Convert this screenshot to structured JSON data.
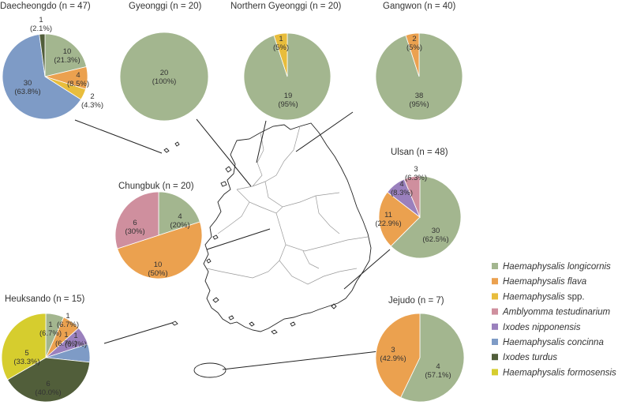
{
  "colors": {
    "Haemaphysalis longicornis": "#a3b68f",
    "Haemaphysalis flava": "#eba14f",
    "Haemaphysalis spp.": "#e8bd3c",
    "Amblyomma testudinarium": "#cf8f9e",
    "Ixodes nipponensis": "#9a80bd",
    "Haemaphysalis concinna": "#7e9bc6",
    "Ixodes turdus": "#515e3a",
    "Haemaphysalis formosensis": "#d6cd2e"
  },
  "legend": [
    {
      "name": "Haemaphysalis longicornis",
      "suffix": ""
    },
    {
      "name": "Haemaphysalis flava",
      "suffix": ""
    },
    {
      "name": "Haemaphysalis",
      "suffix": " spp."
    },
    {
      "name": "Amblyomma testudinarium",
      "suffix": ""
    },
    {
      "name": "Ixodes nipponensis",
      "suffix": ""
    },
    {
      "name": "Haemaphysalis concinna",
      "suffix": ""
    },
    {
      "name": "Ixodes turdus",
      "suffix": ""
    },
    {
      "name": "Haemaphysalis formosensis",
      "suffix": ""
    }
  ],
  "chart_data": [
    {
      "type": "pie",
      "title": "Daecheongdo (n = 47)",
      "slices": [
        {
          "species": "Haemaphysalis longicornis",
          "count": 10,
          "label": "10",
          "percent": "(21.3%)"
        },
        {
          "species": "Haemaphysalis flava",
          "count": 4,
          "label": "4",
          "percent": "(8.5%)"
        },
        {
          "species": "Haemaphysalis spp.",
          "count": 2,
          "label": "2",
          "percent": "(4.3%)"
        },
        {
          "species": "Haemaphysalis concinna",
          "count": 30,
          "label": "30",
          "percent": "(63.8%)"
        },
        {
          "species": "Ixodes turdus",
          "count": 1,
          "label": "1",
          "percent": "(2.1%)"
        }
      ]
    },
    {
      "type": "pie",
      "title": "Gyeonggi (n = 20)",
      "slices": [
        {
          "species": "Haemaphysalis longicornis",
          "count": 20,
          "label": "20",
          "percent": "(100%)"
        }
      ]
    },
    {
      "type": "pie",
      "title": "Northern Gyeonggi (n = 20)",
      "slices": [
        {
          "species": "Haemaphysalis longicornis",
          "count": 19,
          "label": "19",
          "percent": "(95%)"
        },
        {
          "species": "Haemaphysalis spp.",
          "count": 1,
          "label": "1",
          "percent": "(5%)"
        }
      ]
    },
    {
      "type": "pie",
      "title": "Gangwon (n = 40)",
      "slices": [
        {
          "species": "Haemaphysalis longicornis",
          "count": 38,
          "label": "38",
          "percent": "(95%)"
        },
        {
          "species": "Haemaphysalis flava",
          "count": 2,
          "label": "2",
          "percent": "(5%)"
        }
      ]
    },
    {
      "type": "pie",
      "title": "Chungbuk (n = 20)",
      "slices": [
        {
          "species": "Haemaphysalis longicornis",
          "count": 4,
          "label": "4",
          "percent": "(20%)"
        },
        {
          "species": "Haemaphysalis flava",
          "count": 10,
          "label": "10",
          "percent": "(50%)"
        },
        {
          "species": "Amblyomma testudinarium",
          "count": 6,
          "label": "6",
          "percent": "(30%)"
        }
      ]
    },
    {
      "type": "pie",
      "title": "Ulsan (n = 48)",
      "slices": [
        {
          "species": "Haemaphysalis longicornis",
          "count": 30,
          "label": "30",
          "percent": "(62.5%)"
        },
        {
          "species": "Haemaphysalis flava",
          "count": 11,
          "label": "11",
          "percent": "(22.9%)"
        },
        {
          "species": "Ixodes nipponensis",
          "count": 4,
          "label": "4",
          "percent": "(8.3%)"
        },
        {
          "species": "Amblyomma testudinarium",
          "count": 3,
          "label": "3",
          "percent": "(6.3%)"
        }
      ]
    },
    {
      "type": "pie",
      "title": "Heuksando (n = 15)",
      "slices": [
        {
          "species": "Haemaphysalis longicornis",
          "count": 1,
          "label": "1",
          "percent": "(6.7%)"
        },
        {
          "species": "Haemaphysalis flava",
          "count": 1,
          "label": "1",
          "percent": "(6.7%)"
        },
        {
          "species": "Ixodes nipponensis",
          "count": 1,
          "label": "1",
          "percent": "(6.7%)"
        },
        {
          "species": "Haemaphysalis concinna",
          "count": 1,
          "label": "1",
          "percent": "(6.7%)"
        },
        {
          "species": "Ixodes turdus",
          "count": 6,
          "label": "6",
          "percent": "(40.0%)"
        },
        {
          "species": "Haemaphysalis formosensis",
          "count": 5,
          "label": "5",
          "percent": "(33.3%)"
        }
      ]
    },
    {
      "type": "pie",
      "title": "Jejudo (n = 7)",
      "slices": [
        {
          "species": "Haemaphysalis longicornis",
          "count": 4,
          "label": "4",
          "percent": "(57.1%)"
        },
        {
          "species": "Haemaphysalis flava",
          "count": 3,
          "label": "3",
          "percent": "(42.9%)"
        }
      ]
    }
  ]
}
